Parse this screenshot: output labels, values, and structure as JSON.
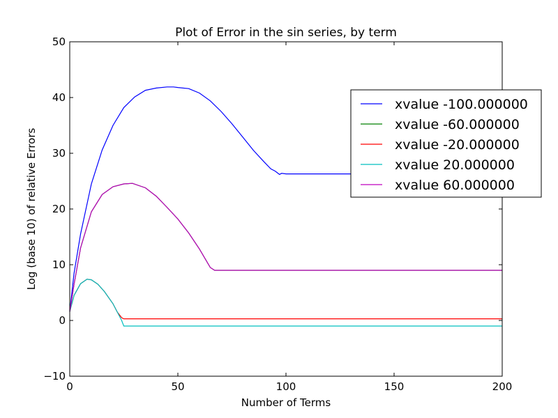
{
  "chart_data": {
    "type": "line",
    "title": "Plot of Error in the sin series, by term",
    "xlabel": "Number of Terms",
    "ylabel": "Log (base 10) of relative Errors",
    "xlim": [
      0,
      200
    ],
    "ylim": [
      -10,
      50
    ],
    "x_ticks": [
      0,
      50,
      100,
      150,
      200
    ],
    "y_ticks": [
      -10,
      0,
      10,
      20,
      30,
      40,
      50
    ],
    "x_tick_labels": [
      "0",
      "50",
      "100",
      "150",
      "200"
    ],
    "y_tick_labels": [
      "−10",
      "0",
      "10",
      "20",
      "30",
      "40",
      "50"
    ],
    "grid": false,
    "legend_position": "upper-right",
    "series": [
      {
        "name": "xvalue -100.000000",
        "color": "#0000ff",
        "points": [
          [
            0,
            1.6
          ],
          [
            2,
            8.5
          ],
          [
            5,
            15.5
          ],
          [
            10,
            24.5
          ],
          [
            15,
            30.6
          ],
          [
            20,
            35.0
          ],
          [
            25,
            38.2
          ],
          [
            30,
            40.1
          ],
          [
            35,
            41.3
          ],
          [
            40,
            41.7
          ],
          [
            45,
            41.9
          ],
          [
            48,
            41.9
          ],
          [
            50,
            41.8
          ],
          [
            55,
            41.6
          ],
          [
            60,
            40.8
          ],
          [
            65,
            39.4
          ],
          [
            70,
            37.5
          ],
          [
            75,
            35.3
          ],
          [
            80,
            32.9
          ],
          [
            85,
            30.5
          ],
          [
            90,
            28.4
          ],
          [
            93,
            27.2
          ],
          [
            95,
            26.8
          ],
          [
            96,
            26.5
          ],
          [
            97,
            26.2
          ],
          [
            98,
            26.4
          ],
          [
            100,
            26.3
          ],
          [
            200,
            26.3
          ]
        ]
      },
      {
        "name": "xvalue -60.000000",
        "color": "#008000",
        "points": [
          [
            0,
            1.6
          ],
          [
            2,
            6.5
          ],
          [
            5,
            13.0
          ],
          [
            10,
            19.5
          ],
          [
            15,
            22.6
          ],
          [
            20,
            24.0
          ],
          [
            25,
            24.5
          ],
          [
            29,
            24.6
          ],
          [
            35,
            23.8
          ],
          [
            40,
            22.3
          ],
          [
            45,
            20.3
          ],
          [
            50,
            18.2
          ],
          [
            55,
            15.7
          ],
          [
            60,
            12.8
          ],
          [
            65,
            9.5
          ],
          [
            67,
            9.0
          ],
          [
            200,
            9.0
          ]
        ]
      },
      {
        "name": "xvalue -20.000000",
        "color": "#ff0000",
        "points": [
          [
            0,
            1.6
          ],
          [
            2,
            4.5
          ],
          [
            5,
            6.6
          ],
          [
            8,
            7.4
          ],
          [
            10,
            7.3
          ],
          [
            13,
            6.5
          ],
          [
            16,
            5.2
          ],
          [
            20,
            3.0
          ],
          [
            22,
            1.5
          ],
          [
            24,
            0.5
          ],
          [
            25,
            0.3
          ],
          [
            200,
            0.3
          ]
        ]
      },
      {
        "name": "xvalue 20.000000",
        "color": "#00bfbf",
        "points": [
          [
            0,
            1.6
          ],
          [
            2,
            4.5
          ],
          [
            5,
            6.6
          ],
          [
            8,
            7.4
          ],
          [
            10,
            7.3
          ],
          [
            13,
            6.5
          ],
          [
            16,
            5.2
          ],
          [
            20,
            3.0
          ],
          [
            22,
            1.5
          ],
          [
            24,
            0.0
          ],
          [
            25,
            -1.0
          ],
          [
            200,
            -1.0
          ]
        ]
      },
      {
        "name": "xvalue 60.000000",
        "color": "#bf00bf",
        "points": [
          [
            0,
            1.6
          ],
          [
            2,
            6.5
          ],
          [
            5,
            13.0
          ],
          [
            10,
            19.5
          ],
          [
            15,
            22.6
          ],
          [
            20,
            24.0
          ],
          [
            25,
            24.5
          ],
          [
            29,
            24.6
          ],
          [
            35,
            23.8
          ],
          [
            40,
            22.3
          ],
          [
            45,
            20.3
          ],
          [
            50,
            18.2
          ],
          [
            55,
            15.7
          ],
          [
            60,
            12.8
          ],
          [
            65,
            9.5
          ],
          [
            67,
            9.0
          ],
          [
            200,
            9.0
          ]
        ]
      }
    ]
  }
}
